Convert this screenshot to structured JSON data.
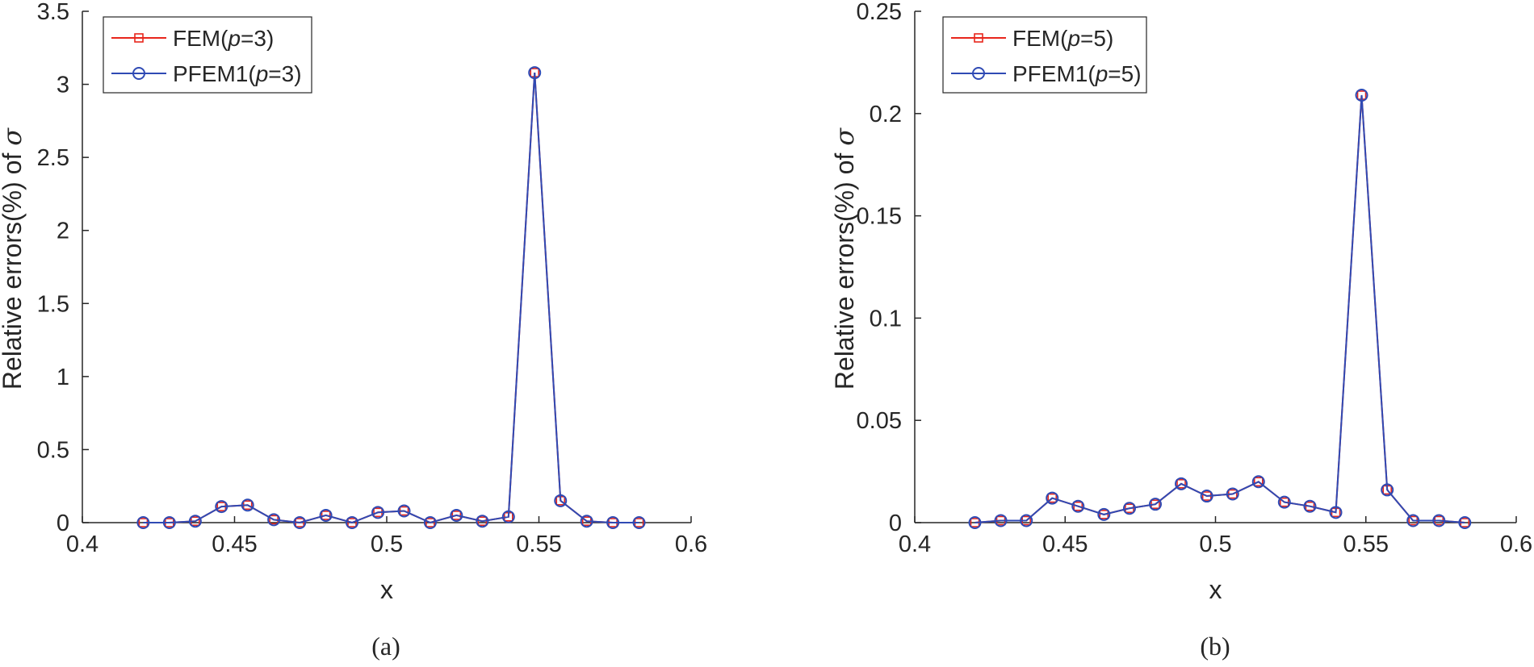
{
  "colors": {
    "fem": "#e8261c",
    "pfem": "#2f4ab4",
    "axis": "#262626",
    "text": "#262626"
  },
  "chart_data": [
    {
      "type": "line",
      "caption": "(a)",
      "xlabel": "x",
      "ylabel": "Relative errors(%) of σ",
      "ylabel_parts": [
        "Relative errors(%) of ",
        "σ"
      ],
      "xlim": [
        0.4,
        0.6
      ],
      "ylim": [
        0,
        3.5
      ],
      "xticks": [
        "0.4",
        "0.45",
        "0.5",
        "0.55",
        "0.6"
      ],
      "yticks": [
        "0",
        "0.5",
        "1",
        "1.5",
        "2",
        "2.5",
        "3",
        "3.5"
      ],
      "legend_position": "top-left",
      "x": [
        0.42,
        0.4286,
        0.4371,
        0.4457,
        0.4543,
        0.4629,
        0.4714,
        0.48,
        0.4886,
        0.4971,
        0.5057,
        0.5143,
        0.5229,
        0.5314,
        0.54,
        0.5486,
        0.5571,
        0.5657,
        0.5743,
        0.5829
      ],
      "series": [
        {
          "name": "FEM(p=3)",
          "legend_parts": [
            "FEM(",
            "p",
            "=3)"
          ],
          "marker": "square",
          "color": "#e8261c",
          "values": [
            0,
            0,
            0.01,
            0.11,
            0.12,
            0.02,
            0.0,
            0.05,
            0.0,
            0.07,
            0.08,
            0.0,
            0.05,
            0.01,
            0.04,
            3.08,
            0.15,
            0.01,
            0.0,
            0.0
          ]
        },
        {
          "name": "PFEM1(p=3)",
          "legend_parts": [
            "PFEM1(",
            "p",
            "=3)"
          ],
          "marker": "circle",
          "color": "#2f4ab4",
          "values": [
            0,
            0,
            0.01,
            0.11,
            0.12,
            0.02,
            0.0,
            0.05,
            0.0,
            0.07,
            0.08,
            0.0,
            0.05,
            0.01,
            0.04,
            3.08,
            0.15,
            0.01,
            0.0,
            0.0
          ]
        }
      ]
    },
    {
      "type": "line",
      "caption": "(b)",
      "xlabel": "x",
      "ylabel": "Relative errors(%) of σ",
      "ylabel_parts": [
        "Relative errors(%) of ",
        "σ"
      ],
      "xlim": [
        0.4,
        0.6
      ],
      "ylim": [
        0,
        0.25
      ],
      "xticks": [
        "0.4",
        "0.45",
        "0.5",
        "0.55",
        "0.6"
      ],
      "yticks": [
        "0",
        "0.05",
        "0.1",
        "0.15",
        "0.2",
        "0.25"
      ],
      "legend_position": "top-left",
      "x": [
        0.42,
        0.4286,
        0.4371,
        0.4457,
        0.4543,
        0.4629,
        0.4714,
        0.48,
        0.4886,
        0.4971,
        0.5057,
        0.5143,
        0.5229,
        0.5314,
        0.54,
        0.5486,
        0.5571,
        0.5657,
        0.5743,
        0.5829
      ],
      "series": [
        {
          "name": "FEM(p=5)",
          "legend_parts": [
            "FEM(",
            "p",
            "=5)"
          ],
          "marker": "square",
          "color": "#e8261c",
          "values": [
            0,
            0.001,
            0.001,
            0.012,
            0.008,
            0.004,
            0.007,
            0.009,
            0.019,
            0.013,
            0.014,
            0.02,
            0.01,
            0.008,
            0.005,
            0.209,
            0.016,
            0.001,
            0.001,
            0.0
          ]
        },
        {
          "name": "PFEM1(p=5)",
          "legend_parts": [
            "PFEM1(",
            "p",
            "=5)"
          ],
          "marker": "circle",
          "color": "#2f4ab4",
          "values": [
            0,
            0.001,
            0.001,
            0.012,
            0.008,
            0.004,
            0.007,
            0.009,
            0.019,
            0.013,
            0.014,
            0.02,
            0.01,
            0.008,
            0.005,
            0.209,
            0.016,
            0.001,
            0.001,
            0.0
          ]
        }
      ]
    }
  ]
}
